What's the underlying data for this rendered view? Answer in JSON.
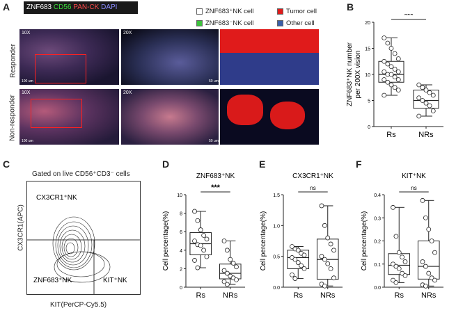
{
  "panel_labels": {
    "A": "A",
    "B": "B",
    "C": "C",
    "D": "D",
    "E": "E",
    "F": "F"
  },
  "panelA": {
    "stain_legend": [
      {
        "text": "ZNF683",
        "color": "#ffffff"
      },
      {
        "text": "CD56",
        "color": "#3ddc3d"
      },
      {
        "text": "PAN-CK",
        "color": "#ff4a4a"
      },
      {
        "text": "DAPI",
        "color": "#8c8cff"
      }
    ],
    "row_labels": [
      "Responder",
      "Non-responder"
    ],
    "magnifications": [
      "10X",
      "20X",
      "10X",
      "20X"
    ],
    "scale_bars": [
      "100 um",
      "50 um",
      "100 um",
      "50 um"
    ],
    "cell_legend": [
      {
        "label": "ZNF683⁺NK cell",
        "color": "#ffffff"
      },
      {
        "label": "Tumor cell",
        "color": "#e01b1b"
      },
      {
        "label": "ZNF683⁻NK cell",
        "color": "#3cc13c"
      },
      {
        "label": "Other cell",
        "color": "#3b5fa8"
      }
    ]
  },
  "panelC": {
    "title": "Gated on live CD56⁺CD3⁻ cells",
    "ylabel": "CX3CR1(APC)",
    "xlabel": "KIT(PerCP-Cy5.5)",
    "gates": [
      "CX3CR1⁺NK",
      "ZNF683⁺NK",
      "KIT⁺NK"
    ]
  },
  "chart_data": [
    {
      "type": "box",
      "panel": "B",
      "ylabel": "ZNF683⁺NK number per 200X vision",
      "categories": [
        "Rs",
        "NRs"
      ],
      "ylim": [
        0,
        20
      ],
      "yticks": [
        0,
        5,
        10,
        15,
        20
      ],
      "significance": "***",
      "series": [
        {
          "values": [
            17,
            16,
            15,
            14,
            13,
            12.5,
            12,
            11.5,
            11,
            10.5,
            10.5,
            10,
            10,
            9.5,
            9,
            9,
            8.5,
            8,
            7.5,
            7,
            6
          ]
        },
        {
          "values": [
            8,
            7.5,
            7,
            6.5,
            6,
            5.5,
            5,
            4.5,
            4,
            3,
            2
          ]
        }
      ],
      "box": [
        {
          "min": 6,
          "q1": 8.5,
          "median": 10,
          "q3": 12.5,
          "max": 17
        },
        {
          "min": 2,
          "q1": 3.5,
          "median": 5,
          "q3": 7,
          "max": 8
        }
      ]
    },
    {
      "type": "box",
      "panel": "D",
      "title": "ZNF683⁺NK",
      "ylabel": "Cell percentage(%)",
      "categories": [
        "Rs",
        "NRs"
      ],
      "ylim": [
        0,
        10
      ],
      "yticks": [
        0,
        2,
        4,
        6,
        8,
        10
      ],
      "significance": "***",
      "series": [
        {
          "values": [
            8.2,
            7.2,
            6.2,
            5.6,
            5.2,
            5.0,
            4.6,
            4.5,
            4.0,
            3.3,
            2.9,
            2.1
          ]
        },
        {
          "values": [
            5.0,
            4.0,
            3.0,
            2.6,
            2.2,
            1.8,
            1.5,
            1.2,
            1.0,
            0.8,
            0.6,
            0.3
          ]
        }
      ],
      "box": [
        {
          "min": 2.1,
          "q1": 3.5,
          "median": 4.7,
          "q3": 5.9,
          "max": 8.2
        },
        {
          "min": 0.3,
          "q1": 0.9,
          "median": 1.5,
          "q3": 2.5,
          "max": 5.0
        }
      ]
    },
    {
      "type": "box",
      "panel": "E",
      "title": "CX3CR1⁺NK",
      "ylabel": "Cell percentage(%)",
      "categories": [
        "Rs",
        "NRs"
      ],
      "ylim": [
        0,
        1.5
      ],
      "yticks": [
        0.0,
        0.5,
        1.0,
        1.5
      ],
      "significance": "ns",
      "series": [
        {
          "values": [
            0.66,
            0.62,
            0.6,
            0.55,
            0.52,
            0.48,
            0.45,
            0.4,
            0.35,
            0.3,
            0.2,
            0.14
          ]
        },
        {
          "values": [
            1.32,
            1.0,
            0.8,
            0.7,
            0.6,
            0.5,
            0.45,
            0.38,
            0.3,
            0.15,
            0.05,
            0.02
          ]
        }
      ],
      "box": [
        {
          "min": 0.14,
          "q1": 0.3,
          "median": 0.48,
          "q3": 0.6,
          "max": 0.66
        },
        {
          "min": 0.02,
          "q1": 0.13,
          "median": 0.45,
          "q3": 0.78,
          "max": 1.32
        }
      ]
    },
    {
      "type": "box",
      "panel": "F",
      "title": "KIT⁺NK",
      "ylabel": "Cell percentage(%)",
      "categories": [
        "Rs",
        "NRs"
      ],
      "ylim": [
        0,
        0.4
      ],
      "yticks": [
        0.0,
        0.1,
        0.2,
        0.3,
        0.4
      ],
      "significance": "ns",
      "series": [
        {
          "values": [
            0.345,
            0.22,
            0.15,
            0.13,
            0.11,
            0.1,
            0.09,
            0.08,
            0.06,
            0.05,
            0.03,
            0.02
          ]
        },
        {
          "values": [
            0.375,
            0.3,
            0.25,
            0.2,
            0.15,
            0.11,
            0.09,
            0.06,
            0.04,
            0.03,
            0.01,
            0.005
          ]
        }
      ],
      "box": [
        {
          "min": 0.02,
          "q1": 0.055,
          "median": 0.095,
          "q3": 0.145,
          "max": 0.345
        },
        {
          "min": 0.005,
          "q1": 0.035,
          "median": 0.09,
          "q3": 0.2,
          "max": 0.375
        }
      ]
    }
  ]
}
